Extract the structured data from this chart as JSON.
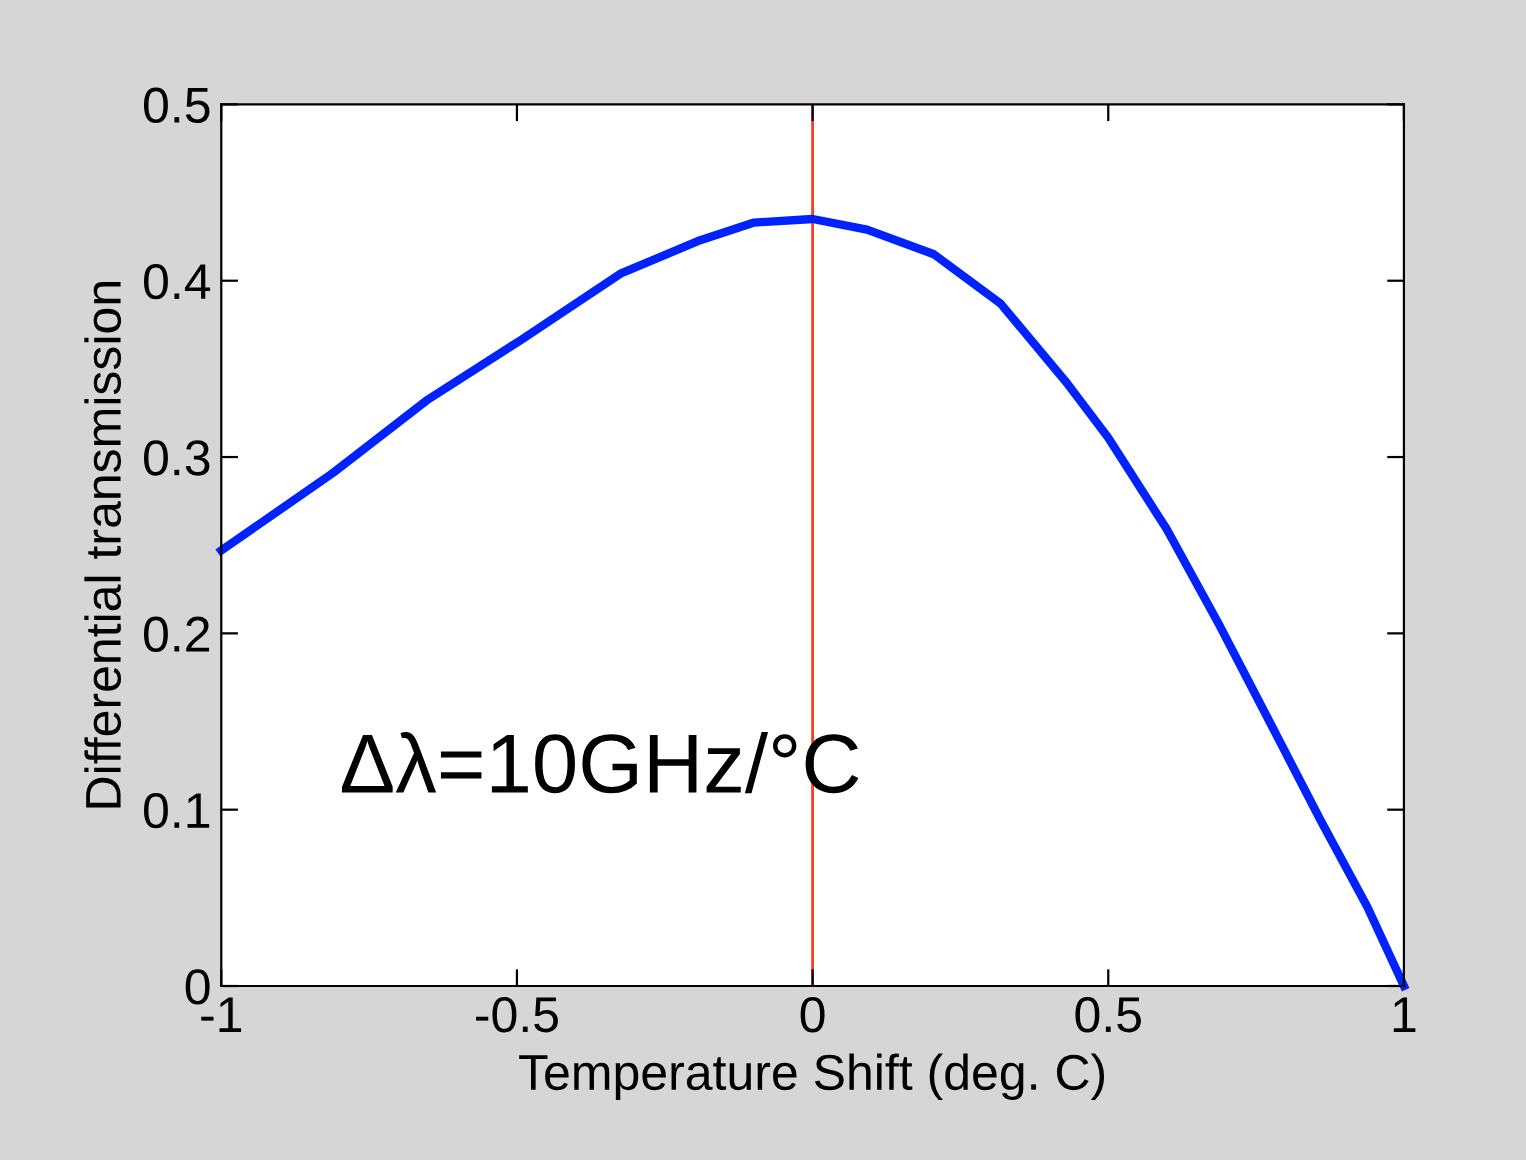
{
  "chart_data": {
    "type": "line",
    "xlabel": "Temperature Shift (deg. C)",
    "ylabel": "Differential transmission",
    "annotations": [
      "Δλ=10GHz/°C"
    ],
    "x": [
      -1,
      -0.811,
      -0.653,
      -0.495,
      -0.325,
      -0.19,
      -0.099,
      0,
      0.092,
      0.205,
      0.318,
      0.43,
      0.5,
      0.599,
      0.689,
      0.768,
      0.859,
      0.938,
      1
    ],
    "series": [
      {
        "color": "#0022ff",
        "values": [
          0.247,
          0.291,
          0.332,
          0.366,
          0.404,
          0.423,
          0.433,
          0.435,
          0.429,
          0.415,
          0.387,
          0.342,
          0.311,
          0.259,
          0.204,
          0.153,
          0.094,
          0.045,
          0
        ]
      }
    ],
    "ref_lines": [
      {
        "axis": "x",
        "value": 0,
        "color": "#ff3b1f"
      }
    ],
    "xlim": [
      -1,
      1
    ],
    "ylim": [
      0,
      0.5
    ],
    "xticks": [
      -1,
      -0.5,
      0,
      0.5,
      1
    ],
    "yticks": [
      0,
      0.1,
      0.2,
      0.3,
      0.4,
      0.5
    ],
    "marker": "none",
    "line_style": "solid"
  }
}
